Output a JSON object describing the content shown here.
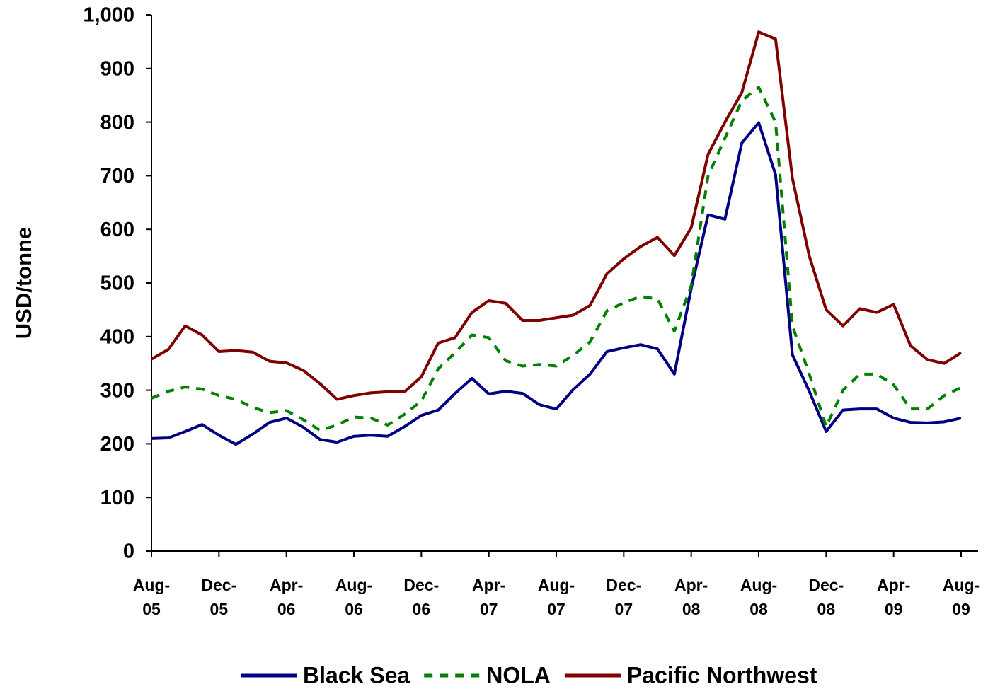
{
  "chart_data": {
    "type": "line",
    "y_label": "USD/tonne",
    "categories": [
      "Aug-05",
      null,
      null,
      null,
      "Dec-05",
      null,
      null,
      null,
      "Apr-06",
      null,
      null,
      null,
      "Aug-06",
      null,
      null,
      null,
      "Dec-06",
      null,
      null,
      null,
      "Apr-07",
      null,
      null,
      null,
      "Aug-07",
      null,
      null,
      null,
      "Dec-07",
      null,
      null,
      null,
      "Apr-08",
      null,
      null,
      null,
      "Aug-08",
      null,
      null,
      null,
      "Dec-08",
      null,
      null,
      null,
      "Apr-09",
      null,
      null,
      null,
      "Aug-09"
    ],
    "series": [
      {
        "name": "Black Sea",
        "color": "#000080",
        "dashed": false,
        "values": [
          210,
          211,
          223,
          236,
          216,
          199,
          218,
          240,
          248,
          231,
          208,
          203,
          214,
          216,
          214,
          232,
          253,
          263,
          294,
          322,
          293,
          298,
          294,
          273,
          265,
          301,
          330,
          372,
          379,
          385,
          377,
          330,
          490,
          627,
          619,
          761,
          799,
          702,
          366,
          298,
          223,
          263,
          265,
          265,
          248,
          240,
          239,
          241,
          248
        ]
      },
      {
        "name": "NOLA",
        "color": "#008000",
        "dashed": true,
        "values": [
          285,
          298,
          306,
          302,
          290,
          283,
          268,
          258,
          262,
          245,
          225,
          235,
          250,
          248,
          235,
          255,
          280,
          340,
          370,
          403,
          398,
          355,
          345,
          348,
          345,
          365,
          390,
          448,
          463,
          475,
          470,
          410,
          495,
          700,
          770,
          840,
          865,
          800,
          420,
          330,
          232,
          300,
          330,
          330,
          310,
          265,
          265,
          290,
          305
        ]
      },
      {
        "name": "Pacific Northwest",
        "color": "#800000",
        "dashed": false,
        "values": [
          358,
          376,
          420,
          403,
          372,
          374,
          371,
          354,
          351,
          337,
          312,
          283,
          290,
          295,
          297,
          297,
          325,
          388,
          398,
          445,
          467,
          462,
          430,
          430,
          435,
          440,
          458,
          517,
          545,
          568,
          585,
          551,
          603,
          740,
          800,
          855,
          968,
          955,
          695,
          550,
          450,
          420,
          452,
          445,
          460,
          383,
          357,
          350,
          370
        ]
      }
    ],
    "ylim": [
      0,
      1000
    ],
    "yticks": [
      0,
      100,
      200,
      300,
      400,
      500,
      600,
      700,
      800,
      900,
      {
        "value": 1000,
        "label": "1,000"
      }
    ],
    "legend": "bottom"
  }
}
